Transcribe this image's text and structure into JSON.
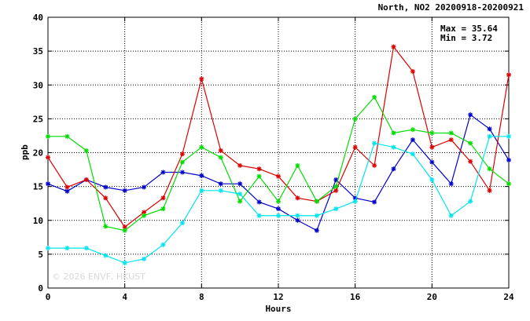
{
  "chart_data": {
    "type": "line",
    "title": "North, NO2 20200918-20200921",
    "xlabel": "Hours",
    "ylabel": "ppb",
    "xlim": [
      0,
      24
    ],
    "ylim": [
      0,
      40
    ],
    "xticks": [
      0,
      4,
      8,
      12,
      16,
      20,
      24
    ],
    "yticks": [
      0,
      5,
      10,
      15,
      20,
      25,
      30,
      35,
      40
    ],
    "grid": true,
    "stats": {
      "max_text": "Max = 35.64",
      "min_text": "Min =  3.72"
    },
    "watermark": "© 2026  ENVF, HKUST",
    "x": [
      0,
      1,
      2,
      3,
      4,
      5,
      6,
      7,
      8,
      9,
      10,
      11,
      12,
      13,
      14,
      15,
      16,
      17,
      18,
      19,
      20,
      21,
      22,
      23,
      24
    ],
    "series": [
      {
        "color": "#0000cc",
        "values": [
          15.4,
          14.3,
          16.0,
          14.9,
          14.4,
          14.9,
          17.1,
          17.1,
          16.6,
          15.4,
          15.4,
          12.7,
          11.7,
          10.0,
          8.5,
          16.0,
          13.3,
          12.7,
          17.6,
          21.9,
          18.6,
          15.4,
          25.6,
          23.5,
          18.9
        ]
      },
      {
        "color": "#dd0000",
        "values": [
          19.3,
          14.9,
          16.0,
          13.3,
          9.0,
          11.2,
          13.3,
          19.8,
          30.9,
          20.3,
          18.1,
          17.6,
          16.5,
          13.3,
          12.8,
          14.4,
          20.8,
          18.1,
          35.64,
          32.0,
          20.8,
          21.9,
          18.7,
          14.4,
          31.5
        ]
      },
      {
        "color": "#00dd00",
        "values": [
          22.4,
          22.4,
          20.3,
          9.1,
          8.5,
          10.7,
          11.7,
          18.6,
          20.8,
          19.3,
          12.8,
          16.5,
          12.8,
          18.1,
          12.8,
          15.0,
          25.0,
          28.2,
          22.9,
          23.4,
          22.9,
          22.9,
          21.4,
          17.6,
          15.4
        ]
      },
      {
        "color": "#00e5ee",
        "values": [
          5.9,
          5.9,
          5.9,
          4.8,
          3.72,
          4.3,
          6.4,
          9.6,
          14.4,
          14.4,
          13.9,
          10.7,
          10.7,
          10.7,
          10.7,
          11.7,
          12.8,
          21.4,
          20.8,
          19.8,
          16.0,
          10.7,
          12.8,
          22.4,
          22.4
        ]
      }
    ]
  }
}
